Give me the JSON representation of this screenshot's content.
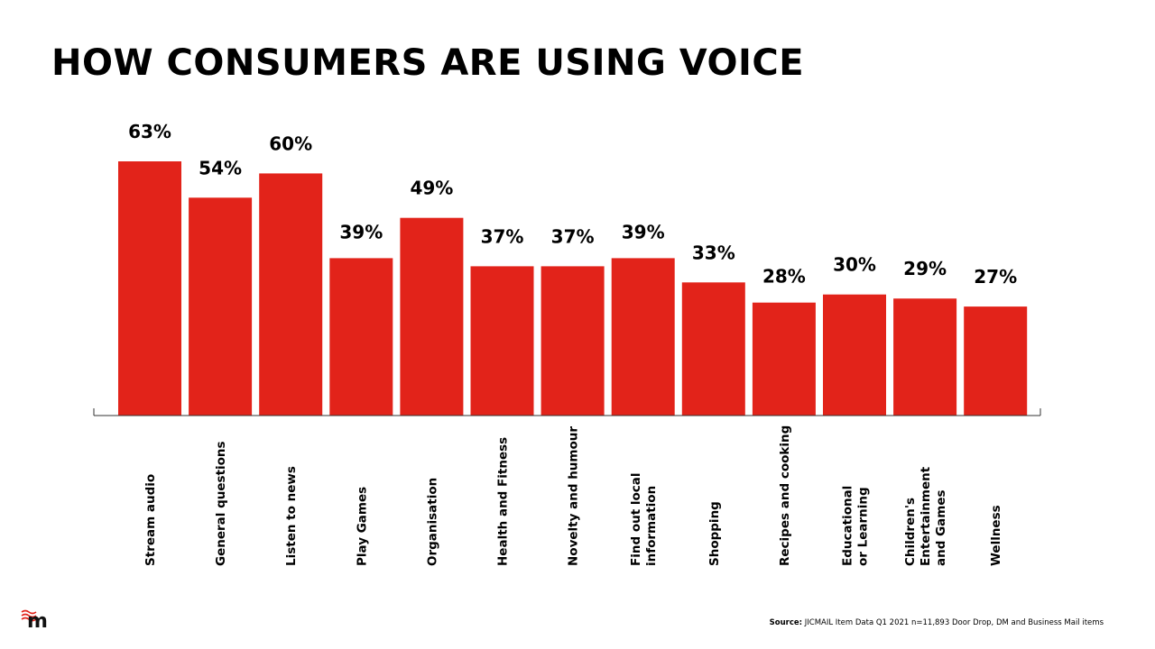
{
  "title": "HOW CONSUMERS ARE USING VOICE",
  "logo_text": "m",
  "source": {
    "label": "Source:",
    "text": "JICMAIL Item Data Q1 2021 n=11,893 Door Drop, DM and Business Mail items"
  },
  "colors": {
    "bar": "#e2231a",
    "text": "#000000"
  },
  "chart_data": {
    "type": "bar",
    "title": "HOW CONSUMERS ARE USING VOICE",
    "xlabel": "",
    "ylabel": "",
    "ylim": [
      0,
      63
    ],
    "grid": false,
    "legend": "none",
    "value_suffix": "%",
    "categories": [
      [
        "Stream audio"
      ],
      [
        "General questions"
      ],
      [
        "Listen to news"
      ],
      [
        "Play Games"
      ],
      [
        "Organisation"
      ],
      [
        "Health and Fitness"
      ],
      [
        "Novelty and humour"
      ],
      [
        "Find out local",
        "information"
      ],
      [
        "Shopping"
      ],
      [
        "Recipes and cooking"
      ],
      [
        "Educational",
        "or Learning"
      ],
      [
        "Children's",
        "Entertainment",
        "and Games"
      ],
      [
        "Wellness"
      ]
    ],
    "values": [
      63,
      54,
      60,
      39,
      49,
      37,
      37,
      39,
      33,
      28,
      30,
      29,
      27
    ],
    "labels": [
      "63%",
      "54%",
      "60%",
      "39%",
      "49%",
      "37%",
      "37%",
      "39%",
      "33%",
      "28%",
      "30%",
      "29%",
      "27%"
    ]
  }
}
